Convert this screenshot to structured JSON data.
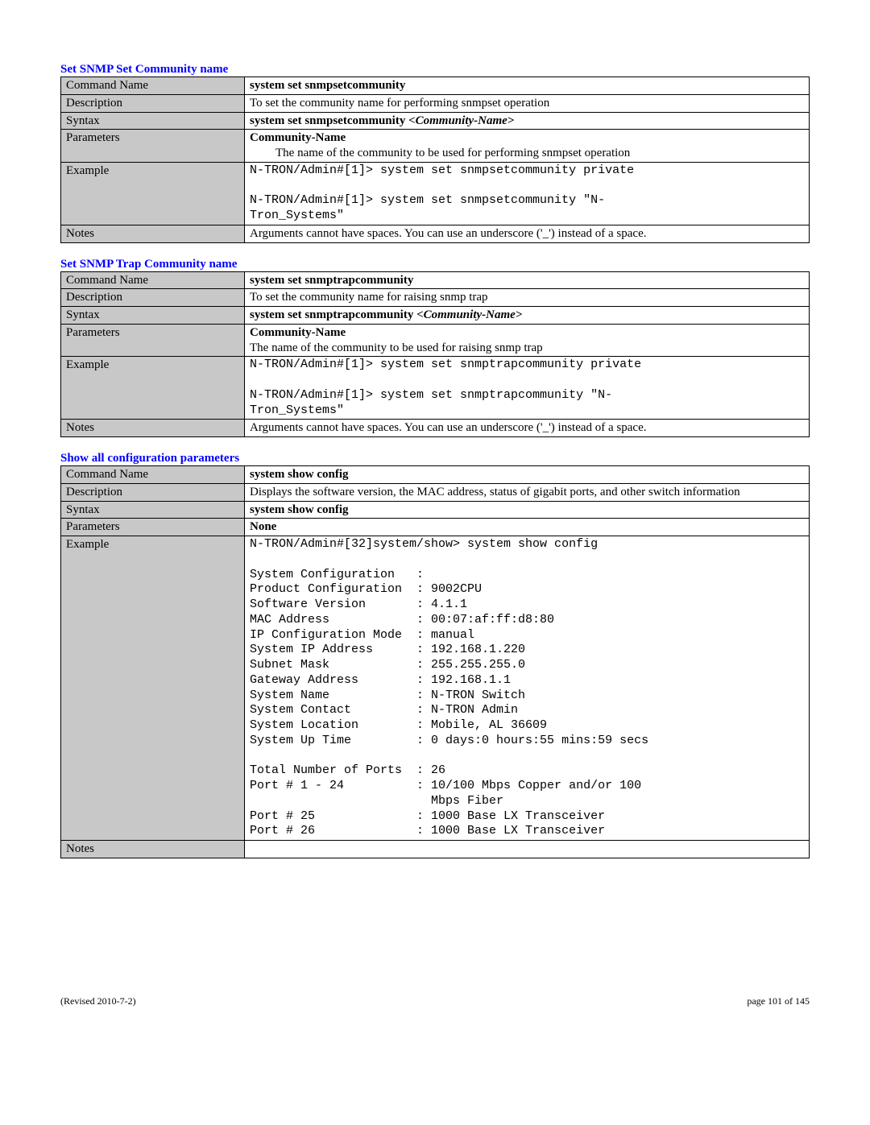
{
  "section1": {
    "title": "Set SNMP Set Community name",
    "rows": {
      "command_name_label": "Command Name",
      "command_name_value": "system set snmpsetcommunity",
      "description_label": "Description",
      "description_value": "To set the community name for performing snmpset operation",
      "syntax_label": "Syntax",
      "syntax_bold": "system set snmpsetcommunity  ",
      "syntax_ital": "<Community-Name>",
      "parameters_label": "Parameters",
      "parameters_bold": "Community-Name",
      "parameters_desc": "The name of the community to be used for performing snmpset operation",
      "example_label": "Example",
      "example_text": "N-TRON/Admin#[1]> system set snmpsetcommunity private\n\nN-TRON/Admin#[1]> system set snmpsetcommunity \"N-\nTron_Systems\"",
      "notes_label": "Notes",
      "notes_value": "Arguments cannot have spaces.  You can use an underscore ('_') instead of a space."
    }
  },
  "section2": {
    "title": "Set SNMP Trap Community name",
    "rows": {
      "command_name_label": "Command Name",
      "command_name_value": "system set snmptrapcommunity",
      "description_label": "Description",
      "description_value": "To set the community name for raising snmp trap",
      "syntax_label": "Syntax",
      "syntax_bold": "system set snmptrapcommunity  ",
      "syntax_ital": "<Community-Name>",
      "parameters_label": "Parameters",
      "parameters_bold": "Community-Name",
      "parameters_desc": "The name of the community to be used for raising snmp trap",
      "example_label": "Example",
      "example_text": "N-TRON/Admin#[1]> system set snmptrapcommunity private\n\nN-TRON/Admin#[1]> system set snmptrapcommunity \"N-\nTron_Systems\"",
      "notes_label": "Notes",
      "notes_value": "Arguments cannot have spaces.  You can use an underscore ('_') instead of a space."
    }
  },
  "section3": {
    "title": "Show all configuration parameters",
    "rows": {
      "command_name_label": "Command Name",
      "command_name_value": "system show config",
      "description_label": "Description",
      "description_value": "Displays the software version, the MAC address, status of gigabit ports, and other switch information",
      "syntax_label": "Syntax",
      "syntax_value": "system show config",
      "parameters_label": "Parameters",
      "parameters_value": "None",
      "example_label": "Example",
      "example_text": "N-TRON/Admin#[32]system/show> system show config\n\nSystem Configuration   :\nProduct Configuration  : 9002CPU\nSoftware Version       : 4.1.1\nMAC Address            : 00:07:af:ff:d8:80\nIP Configuration Mode  : manual\nSystem IP Address      : 192.168.1.220\nSubnet Mask            : 255.255.255.0\nGateway Address        : 192.168.1.1\nSystem Name            : N-TRON Switch\nSystem Contact         : N-TRON Admin\nSystem Location        : Mobile, AL 36609\nSystem Up Time         : 0 days:0 hours:55 mins:59 secs\n\nTotal Number of Ports  : 26\nPort # 1 - 24          : 10/100 Mbps Copper and/or 100\n                         Mbps Fiber\nPort # 25              : 1000 Base LX Transceiver\nPort # 26              : 1000 Base LX Transceiver",
      "notes_label": "Notes",
      "notes_value": ""
    }
  },
  "footer": {
    "left": "(Revised 2010-7-2)",
    "right": "page 101 of 145"
  }
}
